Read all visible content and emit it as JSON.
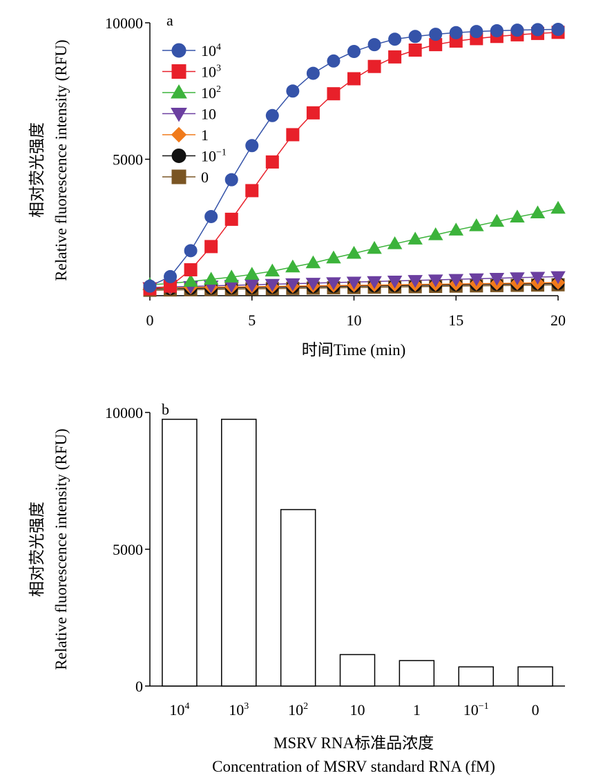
{
  "chart_data": [
    {
      "type": "line",
      "panel_label": "a",
      "xlabel": "时间Time (min)",
      "ylabel_cn": "相对荧光强度",
      "ylabel_en": "Relative fluorescence intensity (RFU)",
      "xlim": [
        0,
        20
      ],
      "ylim": [
        0,
        10000
      ],
      "xticks": [
        0,
        5,
        10,
        15,
        20
      ],
      "yticks": [
        5000,
        10000
      ],
      "grid": false,
      "legend_position": "top-left",
      "x": [
        0,
        1,
        2,
        3,
        4,
        5,
        6,
        7,
        8,
        9,
        10,
        11,
        12,
        13,
        14,
        15,
        16,
        17,
        18,
        19,
        20
      ],
      "series": [
        {
          "base": "10",
          "exp": "4",
          "color": "#3553a9",
          "marker": "circle",
          "values": [
            350,
            700,
            1650,
            2900,
            4250,
            5500,
            6600,
            7500,
            8150,
            8600,
            8950,
            9200,
            9400,
            9500,
            9580,
            9640,
            9680,
            9710,
            9730,
            9750,
            9760
          ]
        },
        {
          "base": "10",
          "exp": "3",
          "color": "#e8202a",
          "marker": "square",
          "values": [
            250,
            350,
            950,
            1800,
            2800,
            3850,
            4900,
            5900,
            6700,
            7400,
            7950,
            8400,
            8750,
            9000,
            9200,
            9330,
            9420,
            9500,
            9560,
            9610,
            9650
          ]
        },
        {
          "base": "10",
          "exp": "2",
          "color": "#3cb33b",
          "marker": "triangle-up",
          "values": [
            400,
            450,
            520,
            600,
            680,
            780,
            900,
            1050,
            1200,
            1380,
            1550,
            1730,
            1900,
            2070,
            2230,
            2400,
            2560,
            2720,
            2880,
            3030,
            3200
          ]
        },
        {
          "base": "10",
          "exp": "",
          "color": "#6b3fa0",
          "marker": "triangle-down",
          "values": [
            300,
            320,
            340,
            360,
            380,
            400,
            420,
            440,
            460,
            480,
            500,
            520,
            540,
            560,
            580,
            600,
            620,
            640,
            660,
            680,
            700
          ]
        },
        {
          "base": "1",
          "exp": "",
          "color": "#f07a1b",
          "marker": "diamond",
          "values": [
            280,
            290,
            300,
            310,
            320,
            330,
            340,
            350,
            360,
            370,
            380,
            390,
            400,
            410,
            420,
            430,
            440,
            450,
            460,
            470,
            480
          ]
        },
        {
          "base": "10",
          "exp": "−1",
          "color": "#111111",
          "marker": "circle",
          "values": [
            250,
            260,
            270,
            280,
            290,
            300,
            310,
            320,
            330,
            340,
            350,
            360,
            370,
            380,
            390,
            400,
            410,
            420,
            430,
            440,
            450
          ]
        },
        {
          "base": "0",
          "exp": "",
          "color": "#7a5523",
          "marker": "square",
          "values": [
            200,
            210,
            220,
            230,
            240,
            250,
            260,
            270,
            280,
            290,
            300,
            310,
            320,
            330,
            340,
            350,
            360,
            370,
            380,
            390,
            400
          ]
        }
      ]
    },
    {
      "type": "bar",
      "panel_label": "b",
      "xlabel_cn": "MSRV RNA标准品浓度",
      "xlabel_en": "Concentration of MSRV standard RNA (fM)",
      "ylabel_cn": "相对荧光强度",
      "ylabel_en": "Relative fluorescence intensity (RFU)",
      "ylim": [
        0,
        10000
      ],
      "yticks": [
        0,
        5000,
        10000
      ],
      "grid": false,
      "categories": [
        {
          "base": "10",
          "exp": "4"
        },
        {
          "base": "10",
          "exp": "3"
        },
        {
          "base": "10",
          "exp": "2"
        },
        {
          "base": "10",
          "exp": ""
        },
        {
          "base": "1",
          "exp": ""
        },
        {
          "base": "10",
          "exp": "−1"
        },
        {
          "base": "0",
          "exp": ""
        }
      ],
      "values": [
        9750,
        9750,
        6450,
        1150,
        930,
        700,
        700
      ],
      "bar_fill": "#ffffff",
      "bar_edge": "#000000"
    }
  ]
}
